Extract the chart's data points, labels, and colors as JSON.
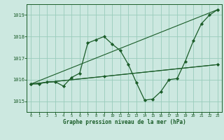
{
  "title": "Graphe pression niveau de la mer (hPa)",
  "bg_color": "#cce8e0",
  "grid_color": "#99ccbb",
  "line_color": "#1a5c28",
  "marker_color": "#1a5c28",
  "xlim": [
    -0.5,
    23.5
  ],
  "ylim": [
    1014.5,
    1019.5
  ],
  "yticks": [
    1015,
    1016,
    1017,
    1018,
    1019
  ],
  "xticks": [
    0,
    1,
    2,
    3,
    4,
    5,
    6,
    7,
    8,
    9,
    10,
    11,
    12,
    13,
    14,
    15,
    16,
    17,
    18,
    19,
    20,
    21,
    22,
    23
  ],
  "main_series": {
    "x": [
      0,
      1,
      2,
      3,
      4,
      5,
      6,
      7,
      8,
      9,
      10,
      11,
      12,
      13,
      14,
      15,
      16,
      17,
      18,
      19,
      20,
      21,
      22,
      23
    ],
    "y": [
      1015.8,
      1015.8,
      1015.9,
      1015.9,
      1015.7,
      1016.1,
      1016.3,
      1017.7,
      1017.85,
      1018.0,
      1017.65,
      1017.35,
      1016.7,
      1015.85,
      1015.05,
      1015.1,
      1015.45,
      1016.0,
      1016.05,
      1016.85,
      1017.8,
      1018.6,
      1019.0,
      1019.25
    ]
  },
  "straight_lines": [
    {
      "x": [
        0,
        23
      ],
      "y": [
        1015.8,
        1019.25
      ]
    },
    {
      "x": [
        0,
        23
      ],
      "y": [
        1015.8,
        1016.7
      ]
    },
    {
      "x": [
        0,
        9,
        23
      ],
      "y": [
        1015.8,
        1016.15,
        1016.7
      ]
    }
  ]
}
